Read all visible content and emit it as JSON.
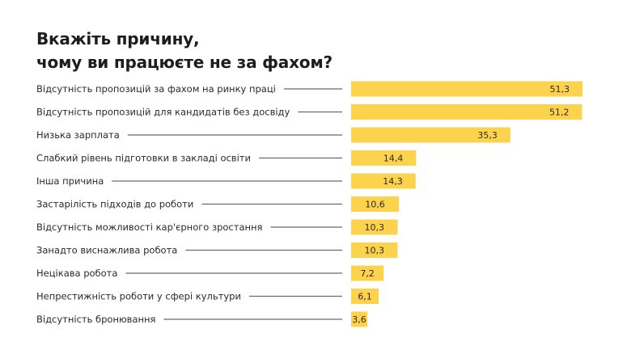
{
  "chart_data": {
    "type": "bar",
    "orientation": "horizontal",
    "title": [
      "Вкажіть причину,",
      "чому ви працюєте не за фахом?"
    ],
    "xlabel": "",
    "ylabel": "",
    "xlim": [
      0,
      51.3
    ],
    "grid": false,
    "bar_color": "#FDD34D",
    "leader_color": "#6b6b6b",
    "categories": [
      "Відсутність пропозицій за фахом на ринку праці",
      "Відсутність пропозицій для кандидатів без досвіду",
      "Низька зарплата",
      "Слабкий рівень підготовки в закладі освіти",
      "Інша причина",
      "Застарілість підходів до роботи",
      "Відсутність можливості кар'єрного зростання",
      "Занадто виснажлива робота",
      "Нецікава робота",
      "Непрестижність роботи у сфері культури",
      "Відсутність бронювання"
    ],
    "values": [
      51.3,
      51.2,
      35.3,
      14.4,
      14.3,
      10.6,
      10.3,
      10.3,
      7.2,
      6.1,
      3.6
    ],
    "value_labels": [
      "51,3",
      "51,2",
      "35,3",
      "14,4",
      "14,3",
      "10,6",
      "10,3",
      "10,3",
      "7,2",
      "6,1",
      "3,6"
    ]
  }
}
